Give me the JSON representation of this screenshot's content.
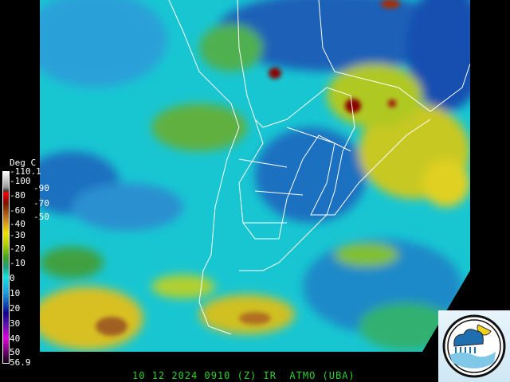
{
  "colorbar": {
    "unit_label": "Deg C",
    "labels": [
      "-110.1",
      "-100",
      "-90",
      "-80",
      "-70",
      "-60",
      "-50",
      "-40",
      "-30",
      "-20",
      "-10",
      "0",
      "10",
      "20",
      "30",
      "40",
      "50",
      "56.9"
    ]
  },
  "footer": {
    "caption": "10 12 2024 0910 (Z) IR  ATMO (UBA)"
  },
  "logo": {
    "name": "ATMO UBA weather logo (cloud, rain, sun, waves)"
  },
  "colors": {
    "footer_text": "#2fd02f",
    "ocean_clear": "#17c8d0",
    "cold_cloud": "#f0e000",
    "deep_convection": "#8b0000"
  }
}
